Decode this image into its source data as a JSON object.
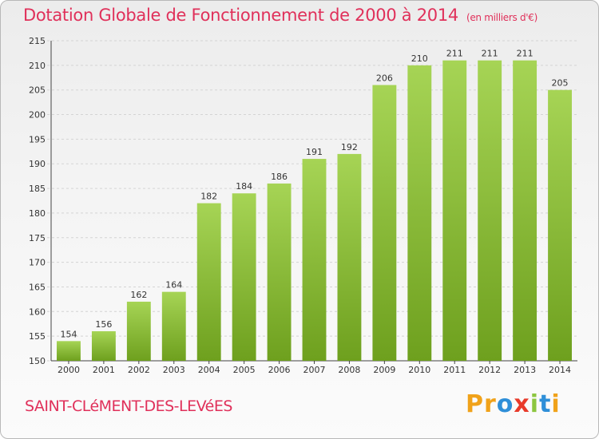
{
  "header": {
    "title": "Dotation Globale de Fonctionnement de 2000 à 2014",
    "subtitle": "(en milliers d'€)"
  },
  "footer": {
    "place": "SAINT-CLéMENT-DES-LEVéES",
    "brand": "Proxiti",
    "brand_letters": [
      {
        "ch": "P",
        "color": "#f0a21a"
      },
      {
        "ch": "r",
        "color": "#f0a21a"
      },
      {
        "ch": "o",
        "color": "#2f8fd8"
      },
      {
        "ch": "x",
        "color": "#e83a2a"
      },
      {
        "ch": "i",
        "color": "#8cc63f"
      },
      {
        "ch": "t",
        "color": "#2f8fd8"
      },
      {
        "ch": "i",
        "color": "#f0a21a"
      }
    ]
  },
  "colors": {
    "accent": "#e0305a",
    "bar_light": "#a6d455",
    "bar_dark": "#6ea01e"
  },
  "chart_data": {
    "type": "bar",
    "categories": [
      "2000",
      "2001",
      "2002",
      "2003",
      "2004",
      "2005",
      "2006",
      "2007",
      "2008",
      "2009",
      "2010",
      "2011",
      "2012",
      "2013",
      "2014"
    ],
    "values": [
      154,
      156,
      162,
      164,
      182,
      184,
      186,
      191,
      192,
      206,
      210,
      211,
      211,
      211,
      205
    ],
    "ylim": [
      150,
      215
    ],
    "yticks": [
      150,
      155,
      160,
      165,
      170,
      175,
      180,
      185,
      190,
      195,
      200,
      205,
      210,
      215
    ],
    "grid": true,
    "data_labels": true
  }
}
